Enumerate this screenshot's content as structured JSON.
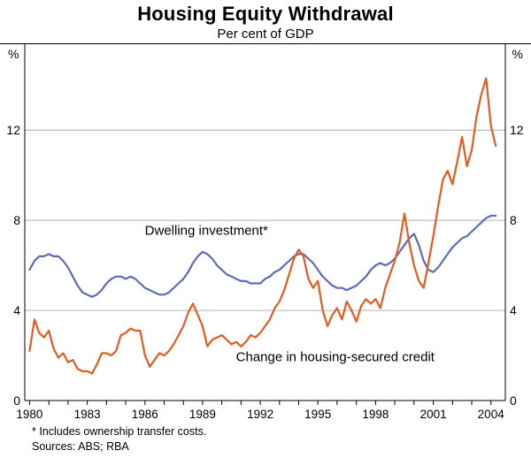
{
  "figure": {
    "title": "Housing Equity Withdrawal",
    "subtitle": "Per cent of GDP",
    "footnote": "* Includes ownership transfer costs.",
    "sources": "Sources: ABS; RBA"
  },
  "chart_data": {
    "type": "line",
    "title": "Housing Equity Withdrawal",
    "subtitle": "Per cent of GDP",
    "unit": "%",
    "xlabel": "",
    "ylabel": "Per cent of GDP",
    "grid": "horizontal",
    "legend_position": "inline",
    "x_domain": [
      1979.75,
      2004.75
    ],
    "y_domain": [
      0,
      15.5
    ],
    "y_ticks": [
      0,
      4,
      8,
      12
    ],
    "x_tick_labels": [
      1980,
      1983,
      1986,
      1989,
      1992,
      1995,
      1998,
      2001,
      2004
    ],
    "x_start": 1980.0,
    "x_step": 0.25,
    "frame_color": "#000000",
    "grid_color": "#999999",
    "series": [
      {
        "name": "Dwelling investment*",
        "color": "#5e6db8",
        "label": {
          "x": 1989.2,
          "y": 7.35
        },
        "values": [
          5.8,
          6.2,
          6.4,
          6.4,
          6.5,
          6.4,
          6.4,
          6.2,
          5.9,
          5.5,
          5.1,
          4.8,
          4.7,
          4.6,
          4.7,
          4.9,
          5.2,
          5.4,
          5.5,
          5.5,
          5.4,
          5.5,
          5.4,
          5.2,
          5.0,
          4.9,
          4.8,
          4.7,
          4.7,
          4.8,
          5.0,
          5.2,
          5.4,
          5.7,
          6.1,
          6.4,
          6.6,
          6.5,
          6.3,
          6.0,
          5.8,
          5.6,
          5.5,
          5.4,
          5.3,
          5.3,
          5.2,
          5.2,
          5.2,
          5.4,
          5.5,
          5.7,
          5.8,
          6.0,
          6.2,
          6.4,
          6.5,
          6.5,
          6.3,
          6.1,
          5.8,
          5.5,
          5.3,
          5.1,
          5.0,
          5.0,
          4.9,
          5.0,
          5.1,
          5.3,
          5.5,
          5.8,
          6.0,
          6.1,
          6.0,
          6.1,
          6.3,
          6.6,
          6.9,
          7.2,
          7.4,
          6.9,
          6.2,
          5.8,
          5.7,
          5.9,
          6.2,
          6.5,
          6.8,
          7.0,
          7.2,
          7.3,
          7.5,
          7.7,
          7.9,
          8.1,
          8.2,
          8.2
        ]
      },
      {
        "name": "Change in housing-secured credit",
        "color": "#e65c1f",
        "label": {
          "x": 1995.9,
          "y": 1.75
        },
        "values": [
          2.2,
          3.6,
          3.0,
          2.8,
          3.1,
          2.3,
          1.9,
          2.1,
          1.7,
          1.8,
          1.4,
          1.3,
          1.3,
          1.2,
          1.6,
          2.1,
          2.1,
          2.0,
          2.2,
          2.9,
          3.0,
          3.2,
          3.1,
          3.1,
          2.0,
          1.5,
          1.8,
          2.1,
          2.0,
          2.2,
          2.5,
          2.9,
          3.3,
          3.9,
          4.3,
          3.8,
          3.3,
          2.4,
          2.7,
          2.8,
          2.9,
          2.7,
          2.5,
          2.6,
          2.4,
          2.6,
          2.9,
          2.8,
          3.0,
          3.3,
          3.6,
          4.1,
          4.4,
          4.9,
          5.6,
          6.3,
          6.7,
          6.4,
          5.4,
          5.0,
          5.3,
          4.0,
          3.3,
          3.8,
          4.1,
          3.6,
          4.4,
          4.0,
          3.5,
          4.2,
          4.5,
          4.3,
          4.5,
          4.1,
          5.0,
          5.6,
          6.2,
          7.0,
          8.3,
          7.0,
          6.0,
          5.3,
          5.0,
          6.1,
          7.3,
          8.6,
          9.8,
          10.2,
          9.6,
          10.6,
          11.7,
          10.4,
          11.1,
          12.6,
          13.6,
          14.3,
          12.2,
          11.3
        ]
      }
    ]
  }
}
